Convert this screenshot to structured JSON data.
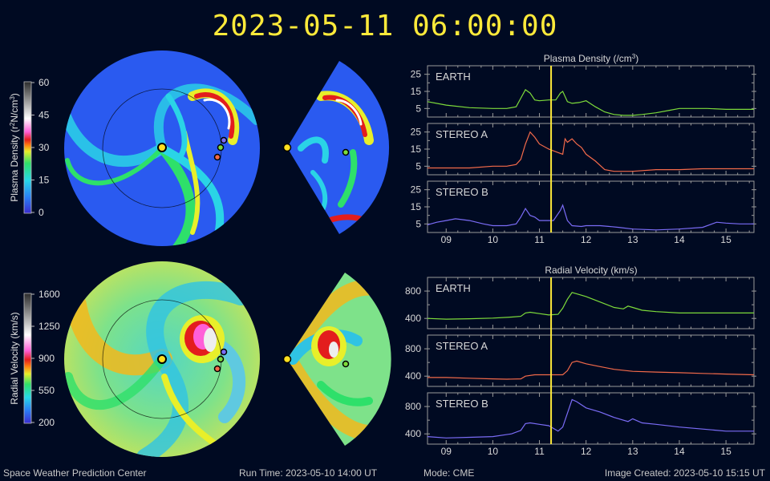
{
  "header": {
    "timestamp": "2023-05-11 06:00:00"
  },
  "colorbars": {
    "density": {
      "label_prefix": "Plasma Density (r",
      "label_sup1": "2",
      "label_mid": "N/cm",
      "label_sup2": "3",
      "label_suffix": ")",
      "ticks": [
        "60",
        "45",
        "30",
        "15",
        "0"
      ]
    },
    "velocity": {
      "label": "Radial Velocity (km/s)",
      "ticks": [
        "1600",
        "1250",
        "900",
        "550",
        "200"
      ]
    }
  },
  "panels": {
    "density_title_prefix": "Plasma Density (/cm",
    "density_title_sup": "3",
    "density_title_suffix": ")",
    "velocity_title": "Radial Velocity (km/s)",
    "spacecraft": [
      "EARTH",
      "STEREO A",
      "STEREO B"
    ],
    "colors": {
      "EARTH": "#7ddb3b",
      "STEREO A": "#f36a4a",
      "STEREO B": "#7a6cf6"
    },
    "current_time_color": "#ffea3a"
  },
  "chart_data": [
    {
      "type": "line",
      "title": "Plasma Density (/cm3)",
      "x_label": "",
      "xlim": [
        8.6,
        15.6
      ],
      "x_ticks": [
        "09",
        "10",
        "11",
        "12",
        "13",
        "14",
        "15"
      ],
      "current_time_x": 11.25,
      "ylim": [
        0,
        30
      ],
      "y_ticks": [
        5,
        15,
        25
      ],
      "series": [
        {
          "name": "EARTH",
          "x": [
            8.6,
            9.0,
            9.5,
            10.0,
            10.3,
            10.5,
            10.6,
            10.7,
            10.8,
            10.9,
            11.0,
            11.2,
            11.35,
            11.45,
            11.5,
            11.6,
            11.7,
            11.85,
            12.0,
            12.2,
            12.4,
            12.6,
            12.8,
            13.0,
            13.2,
            13.5,
            13.8,
            14.0,
            14.2,
            14.6,
            15.0,
            15.6
          ],
          "y": [
            9,
            7,
            5.5,
            5,
            5,
            6,
            11,
            16,
            14,
            10,
            9.5,
            10,
            10,
            14,
            15,
            9,
            8,
            8.5,
            9.5,
            6,
            3,
            1.5,
            1,
            1,
            1.5,
            2.5,
            4,
            5,
            5,
            5,
            4.5,
            4.5
          ]
        },
        {
          "name": "STEREO A",
          "x": [
            8.6,
            9.0,
            9.5,
            10.0,
            10.3,
            10.5,
            10.6,
            10.7,
            10.8,
            10.9,
            11.0,
            11.2,
            11.4,
            11.5,
            11.55,
            11.6,
            11.7,
            11.8,
            11.9,
            12.0,
            12.2,
            12.4,
            12.6,
            12.8,
            13.0,
            13.5,
            14.0,
            14.5,
            15.0,
            15.6
          ],
          "y": [
            4,
            4,
            4,
            5,
            5,
            6,
            9,
            18,
            25,
            22,
            18,
            15,
            13,
            12,
            21,
            19,
            21,
            18,
            16,
            12,
            8,
            3,
            2,
            2,
            2,
            3,
            3,
            3.5,
            3.5,
            3.5
          ]
        },
        {
          "name": "STEREO B",
          "x": [
            8.6,
            8.8,
            9.0,
            9.2,
            9.5,
            9.8,
            10.0,
            10.3,
            10.5,
            10.6,
            10.7,
            10.8,
            10.9,
            11.0,
            11.2,
            11.3,
            11.45,
            11.5,
            11.6,
            11.7,
            11.9,
            12.0,
            12.3,
            12.5,
            12.7,
            13.0,
            13.5,
            14.0,
            14.5,
            14.8,
            15.0,
            15.3,
            15.6
          ],
          "y": [
            4.5,
            6,
            7,
            8,
            7,
            5,
            4,
            4,
            5,
            9,
            14,
            10,
            9,
            7,
            7,
            7,
            13,
            16,
            7,
            4,
            3.5,
            4,
            4,
            3.5,
            3,
            2,
            1.5,
            2,
            3,
            6,
            5.5,
            5,
            5
          ]
        }
      ]
    },
    {
      "type": "line",
      "title": "Radial Velocity (km/s)",
      "x_label": "",
      "xlim": [
        8.6,
        15.6
      ],
      "x_ticks": [
        "09",
        "10",
        "11",
        "12",
        "13",
        "14",
        "15"
      ],
      "current_time_x": 11.25,
      "ylim": [
        250,
        1000
      ],
      "y_ticks": [
        400,
        800
      ],
      "series": [
        {
          "name": "EARTH",
          "x": [
            8.6,
            9.0,
            9.5,
            10.0,
            10.4,
            10.6,
            10.7,
            10.8,
            11.0,
            11.2,
            11.4,
            11.5,
            11.6,
            11.7,
            12.0,
            12.3,
            12.6,
            12.8,
            12.9,
            13.0,
            13.2,
            13.5,
            14.0,
            14.5,
            15.0,
            15.6
          ],
          "y": [
            400,
            390,
            395,
            405,
            420,
            430,
            480,
            490,
            470,
            450,
            460,
            550,
            680,
            780,
            720,
            640,
            560,
            540,
            580,
            560,
            520,
            500,
            480,
            480,
            480,
            480
          ]
        },
        {
          "name": "STEREO A",
          "x": [
            8.6,
            9.0,
            9.5,
            10.0,
            10.3,
            10.6,
            10.7,
            10.9,
            11.0,
            11.3,
            11.5,
            11.6,
            11.7,
            11.8,
            12.0,
            12.3,
            12.6,
            13.0,
            13.5,
            14.0,
            14.5,
            15.0,
            15.6
          ],
          "y": [
            380,
            380,
            370,
            360,
            355,
            360,
            400,
            420,
            420,
            420,
            420,
            480,
            600,
            620,
            580,
            540,
            500,
            470,
            460,
            450,
            440,
            430,
            420
          ]
        },
        {
          "name": "STEREO B",
          "x": [
            8.6,
            9.0,
            9.5,
            10.0,
            10.4,
            10.6,
            10.7,
            10.8,
            11.0,
            11.2,
            11.4,
            11.5,
            11.6,
            11.7,
            11.8,
            12.0,
            12.3,
            12.6,
            12.9,
            13.0,
            13.2,
            13.5,
            14.0,
            14.5,
            15.0,
            15.6
          ],
          "y": [
            360,
            340,
            350,
            360,
            400,
            450,
            550,
            560,
            540,
            520,
            440,
            500,
            700,
            900,
            870,
            780,
            720,
            640,
            580,
            620,
            560,
            540,
            500,
            470,
            440,
            440
          ]
        }
      ]
    }
  ],
  "footer": {
    "org": "Space Weather Prediction Center",
    "run_time": "Run Time: 2023-05-10 14:00 UT",
    "mode": "Mode: CME",
    "created": "Image Created: 2023-05-10 15:15 UT"
  }
}
